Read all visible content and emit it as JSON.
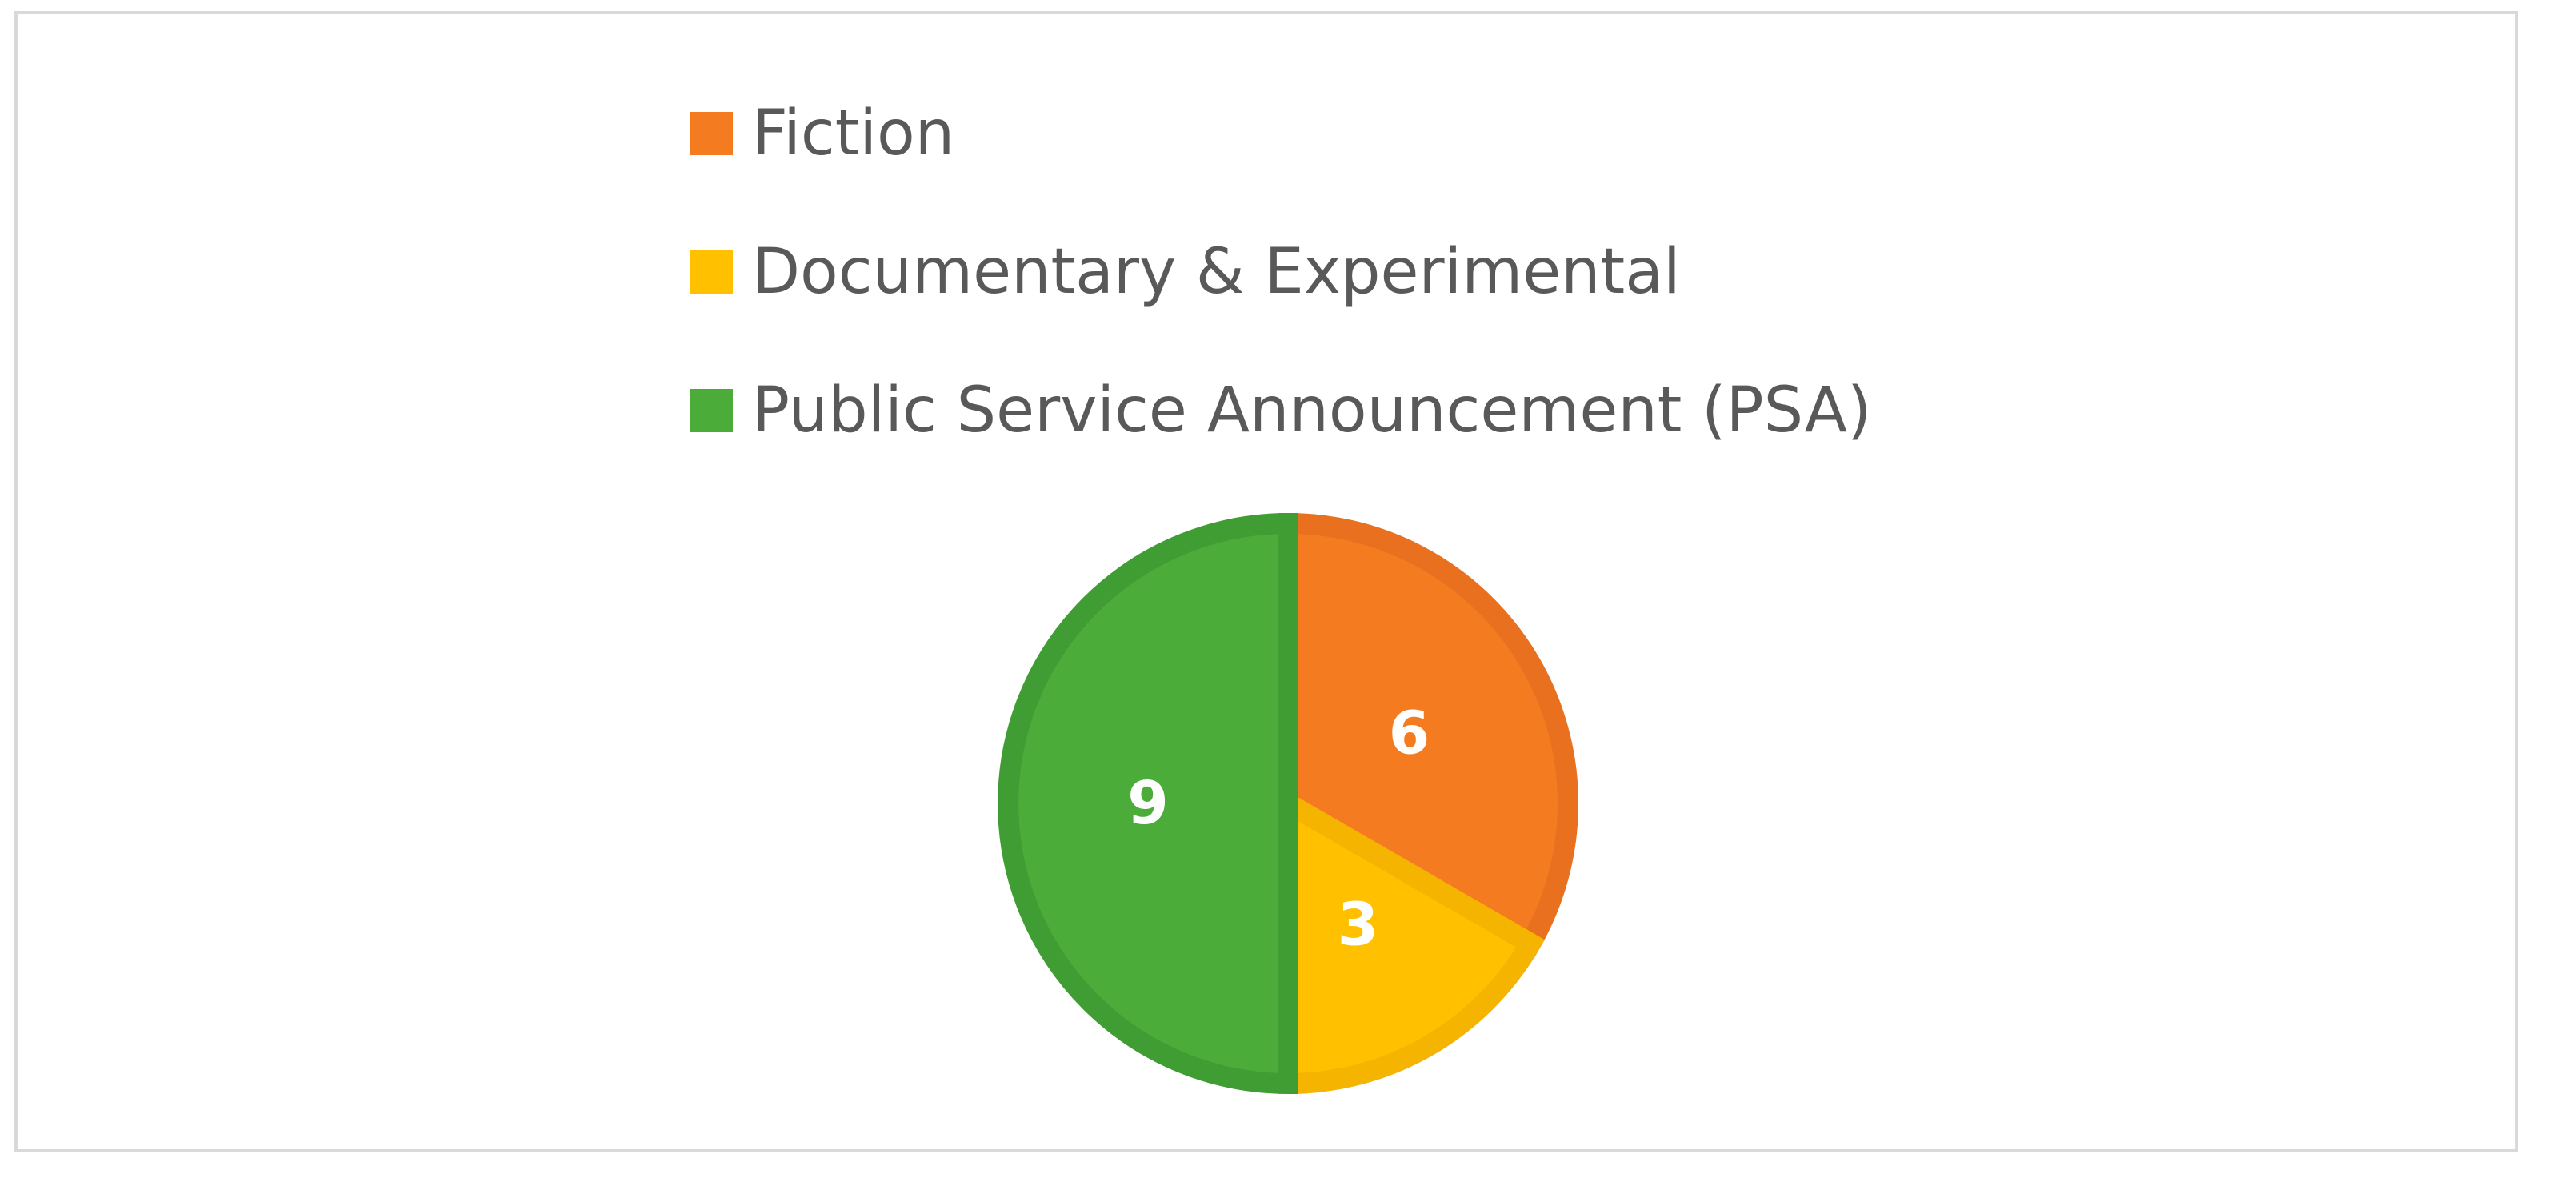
{
  "chart_data": {
    "type": "pie",
    "categories": [
      "Fiction",
      "Documentary & Experimental",
      "Public Service Announcement (PSA)"
    ],
    "values": [
      6,
      3,
      9
    ],
    "colors": [
      "#F47B20",
      "#FFC000",
      "#4CAC3A"
    ],
    "border_colors": [
      "#E8701E",
      "#F5B400",
      "#3F9D33"
    ],
    "data_labels": [
      "6",
      "3",
      "9"
    ],
    "legend_position": "top",
    "start_angle_deg": 0,
    "direction": "clockwise"
  }
}
